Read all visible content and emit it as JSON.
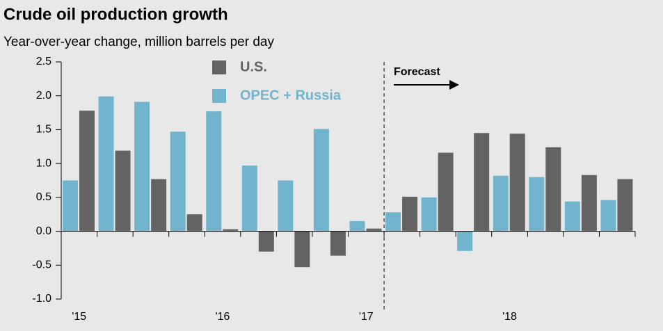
{
  "chart_data": {
    "type": "bar",
    "title": "Crude oil production growth",
    "subtitle": "Year-over-year change, million barrels per day",
    "annotation": "Forecast",
    "categories": [
      "'15",
      null,
      null,
      null,
      "'16",
      null,
      null,
      null,
      "'17",
      null,
      null,
      null,
      "'18",
      null,
      null,
      null
    ],
    "series": [
      {
        "name": "OPEC + Russia",
        "color": "#72b4cd",
        "values": [
          0.75,
          1.99,
          1.91,
          1.47,
          1.77,
          0.97,
          0.75,
          1.51,
          0.15,
          0.28,
          0.5,
          -0.29,
          0.82,
          0.8,
          0.44,
          0.46
        ]
      },
      {
        "name": "U.S.",
        "color": "#636363",
        "values": [
          1.78,
          1.19,
          0.77,
          0.25,
          0.03,
          -0.3,
          -0.53,
          -0.36,
          0.04,
          0.51,
          1.16,
          1.45,
          1.44,
          1.24,
          0.83,
          0.77
        ]
      }
    ],
    "ylim": [
      -1.0,
      2.5
    ],
    "yticks": [
      {
        "value": -1,
        "label": "-1.0"
      },
      -0.5,
      {
        "value": 0,
        "label": "0.0"
      },
      0.5,
      {
        "value": 1,
        "label": "1.0"
      },
      1.5,
      {
        "value": 2,
        "label": "2.0"
      },
      2.5
    ],
    "grid": false
  }
}
